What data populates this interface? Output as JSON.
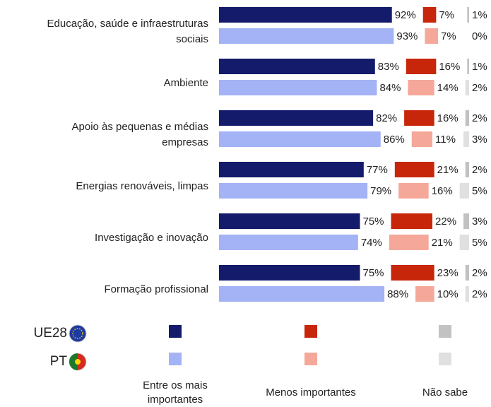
{
  "chart_data": {
    "type": "bar",
    "categories": [
      "Educação, saúde e infraestruturas sociais",
      "Ambiente",
      "Apoio às pequenas e médias empresas",
      "Energias renováveis, limpas",
      "Investigação e inovação",
      "Formação profissional"
    ],
    "groups": [
      "UE28",
      "PT"
    ],
    "series": [
      {
        "name": "Entre os mais importantes",
        "colors": [
          "#141b6b",
          "#a4b3f5"
        ],
        "values": [
          [
            92,
            83,
            82,
            77,
            75,
            75
          ],
          [
            93,
            84,
            86,
            79,
            74,
            88
          ]
        ],
        "value_labels": [
          [
            "92%",
            "83%",
            "82%",
            "77%",
            "75%",
            "75%"
          ],
          [
            "93%",
            "84%",
            "86%",
            "79%",
            "74%",
            "88%"
          ]
        ]
      },
      {
        "name": "Menos importantes",
        "colors": [
          "#c8260a",
          "#f5a899"
        ],
        "values": [
          [
            7,
            16,
            16,
            21,
            22,
            23
          ],
          [
            7,
            14,
            11,
            16,
            21,
            10
          ]
        ],
        "value_labels": [
          [
            "7%",
            "16%",
            "16%",
            "21%",
            "22%",
            "23%"
          ],
          [
            "7%",
            "14%",
            "11%",
            "16%",
            "21%",
            "10%"
          ]
        ]
      },
      {
        "name": "Não sabe",
        "colors": [
          "#c2c2c2",
          "#e0e0e0"
        ],
        "values": [
          [
            1,
            1,
            2,
            2,
            3,
            2
          ],
          [
            0,
            2,
            3,
            5,
            5,
            2
          ]
        ],
        "value_labels": [
          [
            "1%",
            "1%",
            "2%",
            "2%",
            "3%",
            "2%"
          ],
          [
            "0%",
            "2%",
            "3%",
            "5%",
            "5%",
            "2%"
          ]
        ]
      }
    ]
  }
}
